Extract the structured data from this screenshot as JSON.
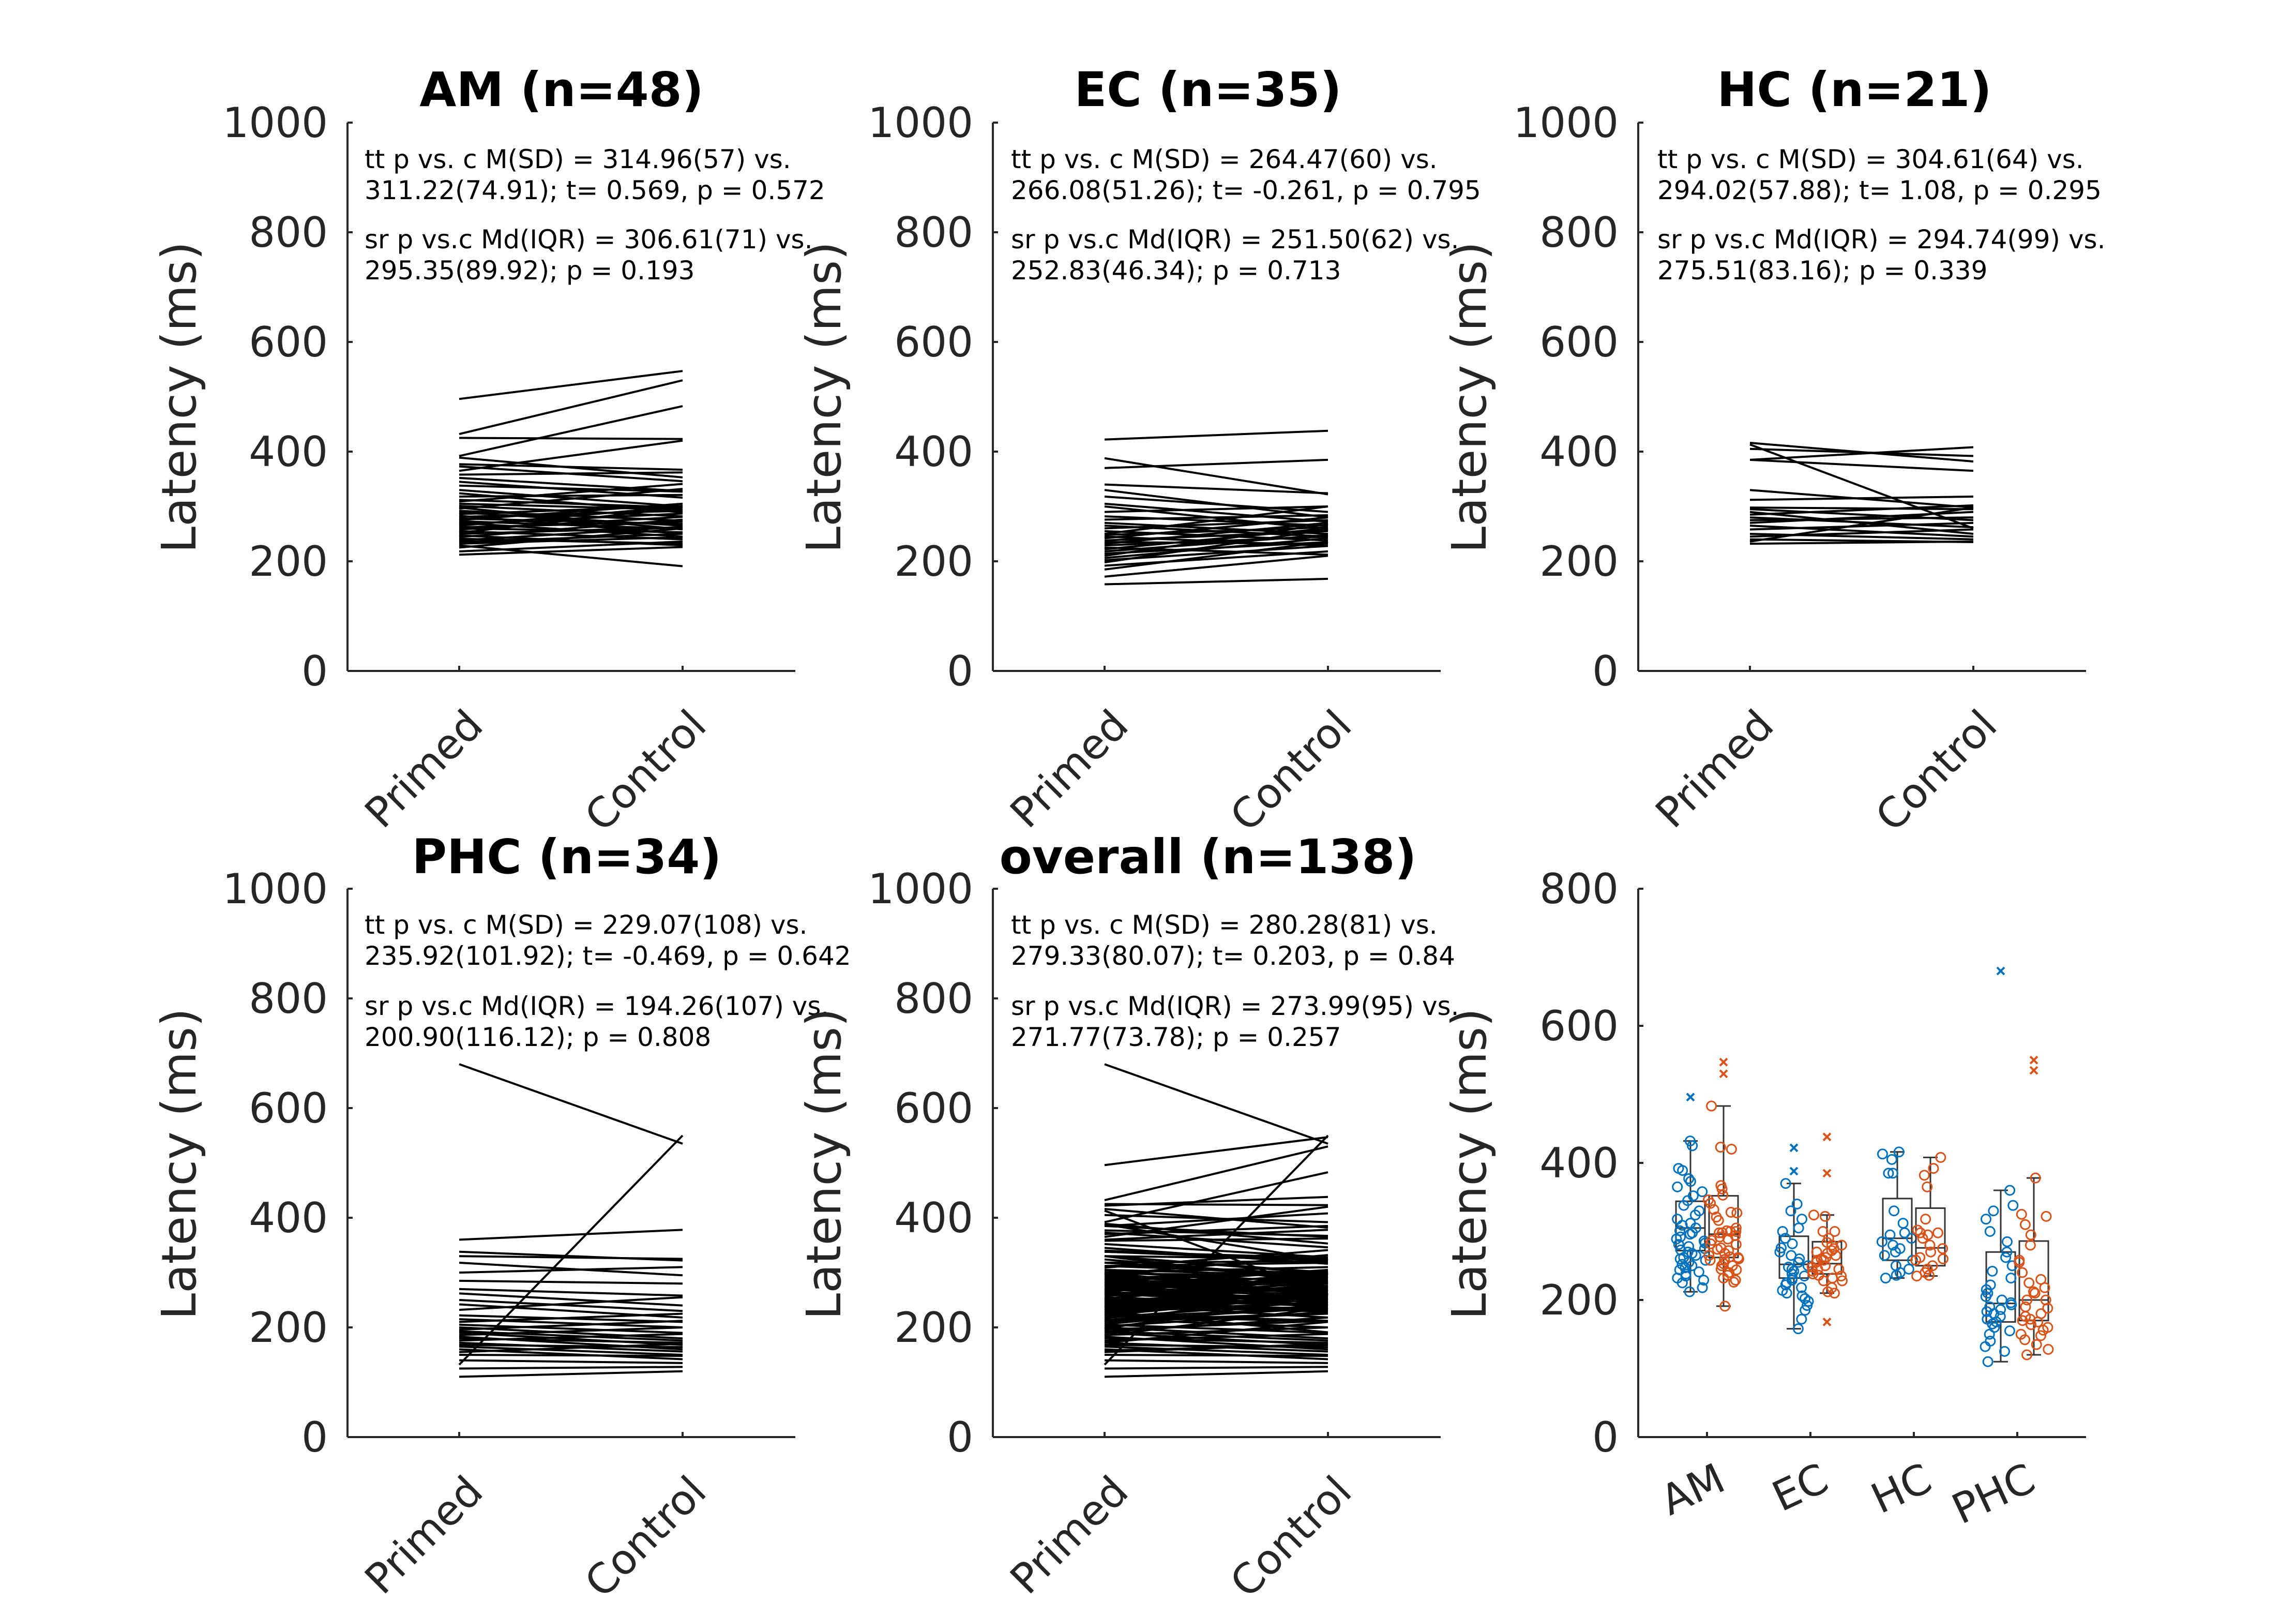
{
  "chart_data": [
    {
      "type": "line",
      "title": "AM (n=48)",
      "ylabel": "Latency (ms)",
      "categories": [
        "Primed",
        "Control"
      ],
      "ylim": [
        0,
        1000
      ],
      "yticks": [
        0,
        200,
        400,
        600,
        800,
        1000
      ],
      "annotations": [
        "tt p vs. c M(SD) = 314.96(57) vs.",
        "311.22(74.91); t= 0.569, p = 0.572",
        "sr p vs.c Md(IQR) = 306.61(71) vs.",
        "295.35(89.92); p = 0.193"
      ],
      "pairs": [
        [
          496,
          547
        ],
        [
          432,
          530
        ],
        [
          425,
          423
        ],
        [
          392,
          483
        ],
        [
          389,
          353
        ],
        [
          377,
          367
        ],
        [
          373,
          346
        ],
        [
          365,
          420
        ],
        [
          358,
          362
        ],
        [
          352,
          328
        ],
        [
          345,
          316
        ],
        [
          338,
          327
        ],
        [
          330,
          300
        ],
        [
          324,
          289
        ],
        [
          318,
          321
        ],
        [
          312,
          298
        ],
        [
          309,
          341
        ],
        [
          305,
          294
        ],
        [
          301,
          282
        ],
        [
          298,
          258
        ],
        [
          296,
          332
        ],
        [
          292,
          274
        ],
        [
          289,
          265
        ],
        [
          286,
          301
        ],
        [
          283,
          250
        ],
        [
          281,
          292
        ],
        [
          278,
          268
        ],
        [
          275,
          305
        ],
        [
          273,
          259
        ],
        [
          270,
          245
        ],
        [
          268,
          287
        ],
        [
          265,
          300
        ],
        [
          262,
          272
        ],
        [
          260,
          253
        ],
        [
          258,
          281
        ],
        [
          255,
          240
        ],
        [
          252,
          298
        ],
        [
          250,
          262
        ],
        [
          247,
          229
        ],
        [
          244,
          276
        ],
        [
          241,
          232
        ],
        [
          238,
          263
        ],
        [
          235,
          250
        ],
        [
          232,
          244
        ],
        [
          229,
          191
        ],
        [
          225,
          260
        ],
        [
          218,
          236
        ],
        [
          212,
          226
        ]
      ]
    },
    {
      "type": "line",
      "title": "EC (n=35)",
      "ylabel": "Latency (ms)",
      "categories": [
        "Primed",
        "Control"
      ],
      "ylim": [
        0,
        1000
      ],
      "yticks": [
        0,
        200,
        400,
        600,
        800,
        1000
      ],
      "annotations": [
        "tt p vs. c M(SD) = 264.47(60) vs.",
        "266.08(51.26); t= -0.261, p = 0.795",
        "sr p vs.c Md(IQR) = 251.50(62) vs.",
        "252.83(46.34); p = 0.713"
      ],
      "pairs": [
        [
          422,
          438
        ],
        [
          388,
          322
        ],
        [
          370,
          385
        ],
        [
          340,
          324
        ],
        [
          330,
          280
        ],
        [
          318,
          290
        ],
        [
          305,
          272
        ],
        [
          300,
          258
        ],
        [
          290,
          300
        ],
        [
          282,
          265
        ],
        [
          276,
          284
        ],
        [
          270,
          250
        ],
        [
          265,
          245
        ],
        [
          260,
          275
        ],
        [
          255,
          238
        ],
        [
          250,
          300
        ],
        [
          248,
          262
        ],
        [
          245,
          228
        ],
        [
          242,
          280
        ],
        [
          238,
          255
        ],
        [
          235,
          232
        ],
        [
          232,
          270
        ],
        [
          229,
          245
        ],
        [
          225,
          212
        ],
        [
          222,
          260
        ],
        [
          218,
          248
        ],
        [
          214,
          235
        ],
        [
          210,
          268
        ],
        [
          206,
          242
        ],
        [
          202,
          228
        ],
        [
          198,
          258
        ],
        [
          192,
          218
        ],
        [
          185,
          236
        ],
        [
          172,
          210
        ],
        [
          158,
          168
        ]
      ]
    },
    {
      "type": "line",
      "title": "HC (n=21)",
      "ylabel": "Latency (ms)",
      "categories": [
        "Primed",
        "Control"
      ],
      "ylim": [
        0,
        1000
      ],
      "yticks": [
        0,
        200,
        400,
        600,
        800,
        1000
      ],
      "annotations": [
        "tt p vs. c M(SD) = 304.61(64) vs.",
        "294.02(57.88); t= 1.08, p = 0.295",
        "sr p vs.c Md(IQR) = 294.74(99) vs.",
        "275.51(83.16); p = 0.339"
      ],
      "pairs": [
        [
          416,
          382
        ],
        [
          413,
          260
        ],
        [
          405,
          392
        ],
        [
          385,
          365
        ],
        [
          385,
          408
        ],
        [
          330,
          298
        ],
        [
          312,
          318
        ],
        [
          298,
          295
        ],
        [
          295,
          275
        ],
        [
          290,
          250
        ],
        [
          285,
          302
        ],
        [
          280,
          262
        ],
        [
          275,
          280
        ],
        [
          270,
          290
        ],
        [
          265,
          245
        ],
        [
          258,
          270
        ],
        [
          250,
          240
        ],
        [
          245,
          258
        ],
        [
          240,
          235
        ],
        [
          236,
          298
        ],
        [
          232,
          236
        ]
      ]
    },
    {
      "type": "line",
      "title": "PHC (n=34)",
      "ylabel": "Latency (ms)",
      "categories": [
        "Primed",
        "Control"
      ],
      "ylim": [
        0,
        1000
      ],
      "yticks": [
        0,
        200,
        400,
        600,
        800,
        1000
      ],
      "annotations": [
        "tt p vs. c M(SD) = 229.07(108) vs.",
        "235.92(101.92); t= -0.469, p = 0.642",
        "sr p vs.c Md(IQR) = 194.26(107) vs.",
        "200.90(116.12); p = 0.808"
      ],
      "pairs": [
        [
          680,
          535
        ],
        [
          360,
          378
        ],
        [
          338,
          322
        ],
        [
          330,
          325
        ],
        [
          318,
          295
        ],
        [
          300,
          310
        ],
        [
          285,
          280
        ],
        [
          270,
          258
        ],
        [
          262,
          240
        ],
        [
          250,
          230
        ],
        [
          242,
          218
        ],
        [
          232,
          255
        ],
        [
          222,
          210
        ],
        [
          215,
          200
        ],
        [
          210,
          225
        ],
        [
          205,
          190
        ],
        [
          200,
          180
        ],
        [
          196,
          212
        ],
        [
          193,
          176
        ],
        [
          190,
          168
        ],
        [
          186,
          200
        ],
        [
          183,
          160
        ],
        [
          180,
          172
        ],
        [
          176,
          188
        ],
        [
          172,
          156
        ],
        [
          168,
          164
        ],
        [
          165,
          150
        ],
        [
          160,
          142
        ],
        [
          155,
          170
        ],
        [
          150,
          148
        ],
        [
          140,
          135
        ],
        [
          132,
          550
        ],
        [
          125,
          128
        ],
        [
          110,
          120
        ]
      ]
    },
    {
      "type": "line",
      "title": "overall (n=138)",
      "ylabel": "Latency (ms)",
      "categories": [
        "Primed",
        "Control"
      ],
      "ylim": [
        0,
        1000
      ],
      "yticks": [
        0,
        200,
        400,
        600,
        800,
        1000
      ],
      "annotations": [
        "tt p vs. c M(SD) = 280.28(81) vs.",
        "279.33(80.07); t= 0.203, p = 0.84",
        "sr p vs.c Md(IQR) = 273.99(95) vs.",
        "271.77(73.78); p = 0.257"
      ],
      "pairs_note": "all pairs from AM, EC, HC and PHC panels combined",
      "pairs": "combined"
    },
    {
      "type": "box",
      "ylabel": "Latency (ms)",
      "categories": [
        "AM",
        "EC",
        "HC",
        "PHC"
      ],
      "ylim": [
        0,
        800
      ],
      "yticks": [
        0,
        200,
        400,
        600,
        800
      ],
      "series": [
        {
          "color": "#0072BD",
          "boxes": [
            {
              "q1": 272,
              "median": 305,
              "q3": 344,
              "whisker_low": 212,
              "whisker_high": 432,
              "outliers": [
                496
              ]
            },
            {
              "q1": 232,
              "median": 252,
              "q3": 293,
              "whisker_low": 158,
              "whisker_high": 370,
              "outliers": [
                422,
                388
              ]
            },
            {
              "q1": 258,
              "median": 290,
              "q3": 348,
              "whisker_low": 232,
              "whisker_high": 416,
              "outliers": []
            },
            {
              "q1": 168,
              "median": 195,
              "q3": 270,
              "whisker_low": 110,
              "whisker_high": 360,
              "outliers": [
                680
              ]
            }
          ]
        },
        {
          "color": "#D95319",
          "boxes": [
            {
              "q1": 262,
              "median": 296,
              "q3": 352,
              "whisker_low": 191,
              "whisker_high": 483,
              "outliers": [
                547,
                530
              ]
            },
            {
              "q1": 238,
              "median": 253,
              "q3": 285,
              "whisker_low": 210,
              "whisker_high": 324,
              "outliers": [
                438,
                385,
                168
              ]
            },
            {
              "q1": 250,
              "median": 276,
              "q3": 334,
              "whisker_low": 235,
              "whisker_high": 408,
              "outliers": []
            },
            {
              "q1": 170,
              "median": 200,
              "q3": 286,
              "whisker_low": 120,
              "whisker_high": 378,
              "outliers": [
                550,
                535
              ]
            }
          ]
        }
      ]
    }
  ]
}
